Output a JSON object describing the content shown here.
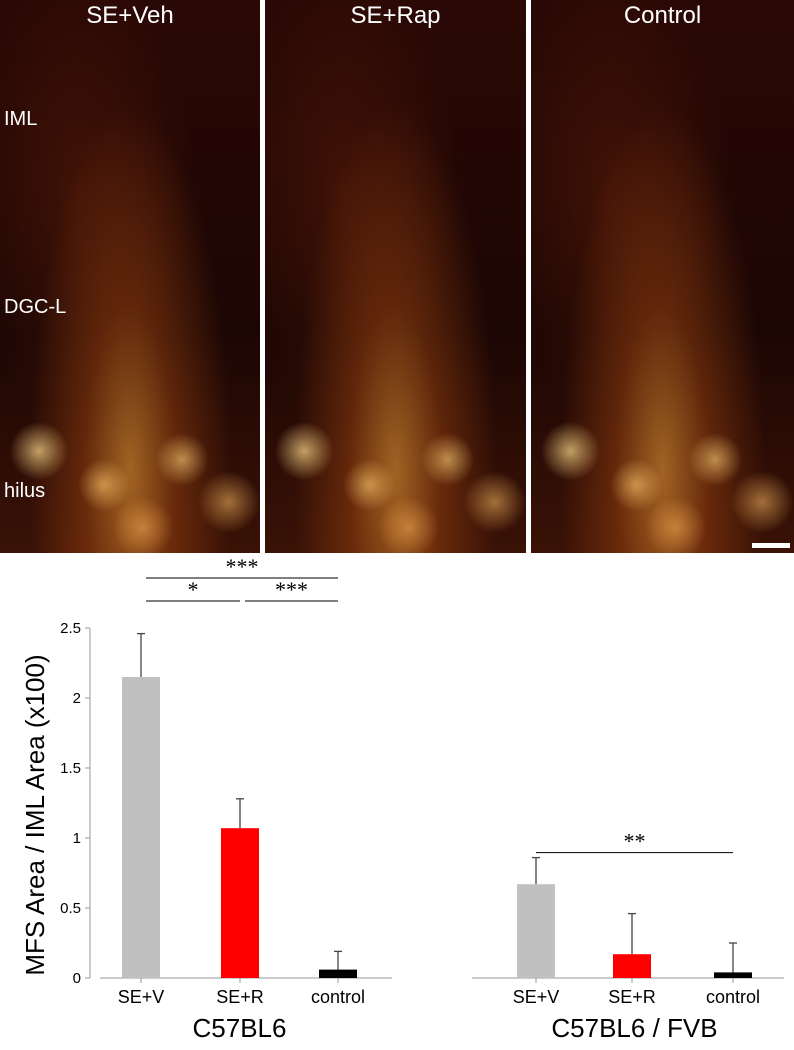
{
  "panels": [
    {
      "title": "SE+Veh"
    },
    {
      "title": "SE+Rap"
    },
    {
      "title": "Control"
    }
  ],
  "layer_labels": [
    "IML",
    "DGC-L",
    "hilus"
  ],
  "chart_data": {
    "type": "bar",
    "ylabel": "MFS Area / IML Area (x100)",
    "ylim": [
      0,
      2.5
    ],
    "yticks": [
      "0",
      "0.5",
      "1",
      "1.5",
      "2",
      "2.5"
    ],
    "grid": false,
    "groups": [
      {
        "name": "C57BL6",
        "categories": [
          "SE+V",
          "SE+R",
          "control"
        ],
        "values": [
          2.15,
          1.07,
          0.06
        ],
        "errors": [
          0.31,
          0.21,
          0.13
        ],
        "colors": [
          "#c0c0c0",
          "#ff0000",
          "#000000"
        ],
        "significance": [
          {
            "from": 0,
            "to": 2,
            "label": "***"
          },
          {
            "from": 0,
            "to": 1,
            "label": "*"
          },
          {
            "from": 1,
            "to": 2,
            "label": "***"
          }
        ]
      },
      {
        "name": "C57BL6 / FVB",
        "categories": [
          "SE+V",
          "SE+R",
          "control"
        ],
        "values": [
          0.67,
          0.17,
          0.04
        ],
        "errors": [
          0.19,
          0.29,
          0.21
        ],
        "colors": [
          "#c0c0c0",
          "#ff0000",
          "#000000"
        ],
        "significance": [
          {
            "from": 0,
            "to": 2,
            "label": "**"
          }
        ]
      }
    ]
  }
}
